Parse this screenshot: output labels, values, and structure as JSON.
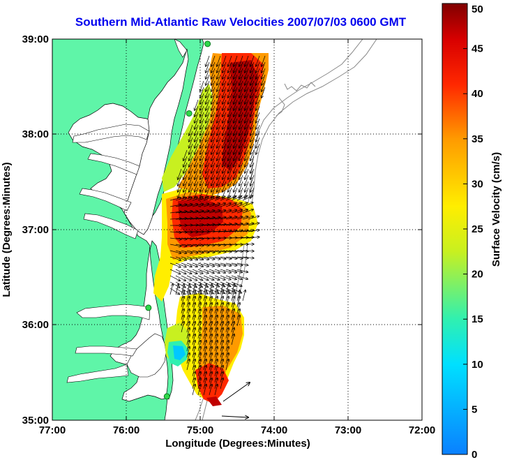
{
  "title": "Southern Mid-Atlantic Raw Velocities 2007/07/03 0600 GMT",
  "xlabel": "Longitude (Degrees:Minutes)",
  "ylabel": "Latitude (Degrees:Minutes)",
  "x_ticks": [
    "77:00",
    "76:00",
    "75:00",
    "74:00",
    "73:00",
    "72:00"
  ],
  "y_ticks": [
    "39:00",
    "38:00",
    "37:00",
    "36:00",
    "35:00"
  ],
  "colorbar": {
    "label": "Surface Velocity (cm/s)",
    "ticks": [
      "0",
      "5",
      "10",
      "15",
      "20",
      "25",
      "30",
      "35",
      "40",
      "45",
      "50"
    ],
    "range": [
      0,
      50
    ]
  },
  "colors": {
    "land": "#5ff5a8",
    "ocean": "#ffffff",
    "title": "#0000ee",
    "station": "#2fd84a"
  },
  "map": {
    "lon_range": [
      -77,
      -72
    ],
    "lat_range": [
      35,
      39
    ],
    "stations": [
      {
        "lon": -74.9,
        "lat": 38.95
      },
      {
        "lon": -75.15,
        "lat": 38.22
      },
      {
        "lon": -75.7,
        "lat": 36.18
      },
      {
        "lon": -75.45,
        "lat": 35.25
      }
    ],
    "velocity_regions": [
      {
        "name": "north",
        "speed_cm_s": 44
      },
      {
        "name": "middle",
        "speed_cm_s": 47
      },
      {
        "name": "south",
        "speed_cm_s": 30
      }
    ]
  }
}
